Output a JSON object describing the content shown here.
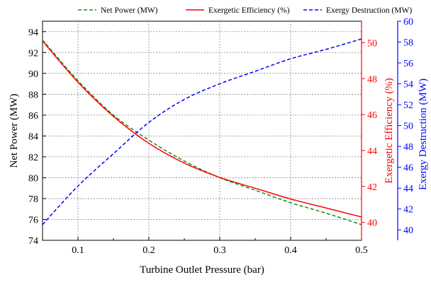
{
  "chart_data": {
    "type": "line",
    "title": "",
    "xlabel": "Turbine Outlet Pressure (bar)",
    "xlim": [
      0.05,
      0.5
    ],
    "x_ticks": [
      0.1,
      0.2,
      0.3,
      0.4,
      0.5
    ],
    "x_tick_labels": [
      "0.1",
      "0.2",
      "0.3",
      "0.4",
      "0.5"
    ],
    "grid": true,
    "legend_position": "top",
    "axes": {
      "left": {
        "label": "Net Power (MW)",
        "ylim": [
          74,
          95
        ],
        "ticks": [
          74,
          76,
          78,
          80,
          82,
          84,
          86,
          88,
          90,
          92,
          94
        ],
        "color": "#000000"
      },
      "right1": {
        "label": "Exergetic Efficiency (%)",
        "ylim": [
          39,
          51.2
        ],
        "ticks": [
          40,
          42,
          44,
          46,
          48,
          50
        ],
        "color": "#ff0000"
      },
      "right2": {
        "label": "Exergy Destruction (MW)",
        "ylim": [
          39,
          60
        ],
        "ticks": [
          40,
          42,
          44,
          46,
          48,
          50,
          52,
          54,
          56,
          58,
          60
        ],
        "color": "#0000ff"
      }
    },
    "series": [
      {
        "name": "Net Power (MW)",
        "axis": "left",
        "color": "#1a8a1a",
        "dash": "dashed",
        "x": [
          0.05,
          0.1,
          0.15,
          0.2,
          0.25,
          0.3,
          0.35,
          0.4,
          0.45,
          0.5
        ],
        "y": [
          93.2,
          89.3,
          86.0,
          83.6,
          81.6,
          80.0,
          78.8,
          77.6,
          76.6,
          75.5
        ]
      },
      {
        "name": "Exergetic Efficiency (%)",
        "axis": "right1",
        "color": "#ff0000",
        "dash": "solid",
        "x": [
          0.05,
          0.1,
          0.15,
          0.2,
          0.25,
          0.3,
          0.35,
          0.4,
          0.45,
          0.5
        ],
        "y": [
          50.1,
          47.8,
          45.9,
          44.4,
          43.3,
          42.5,
          41.9,
          41.3,
          40.8,
          40.3
        ]
      },
      {
        "name": "Exergy Destruction (MW)",
        "axis": "right2",
        "color": "#0000ff",
        "dash": "dashed",
        "x": [
          0.05,
          0.1,
          0.15,
          0.2,
          0.25,
          0.3,
          0.35,
          0.4,
          0.45,
          0.5
        ],
        "y": [
          40.5,
          44.2,
          47.3,
          50.3,
          52.5,
          54.0,
          55.2,
          56.4,
          57.3,
          58.3
        ]
      }
    ]
  }
}
